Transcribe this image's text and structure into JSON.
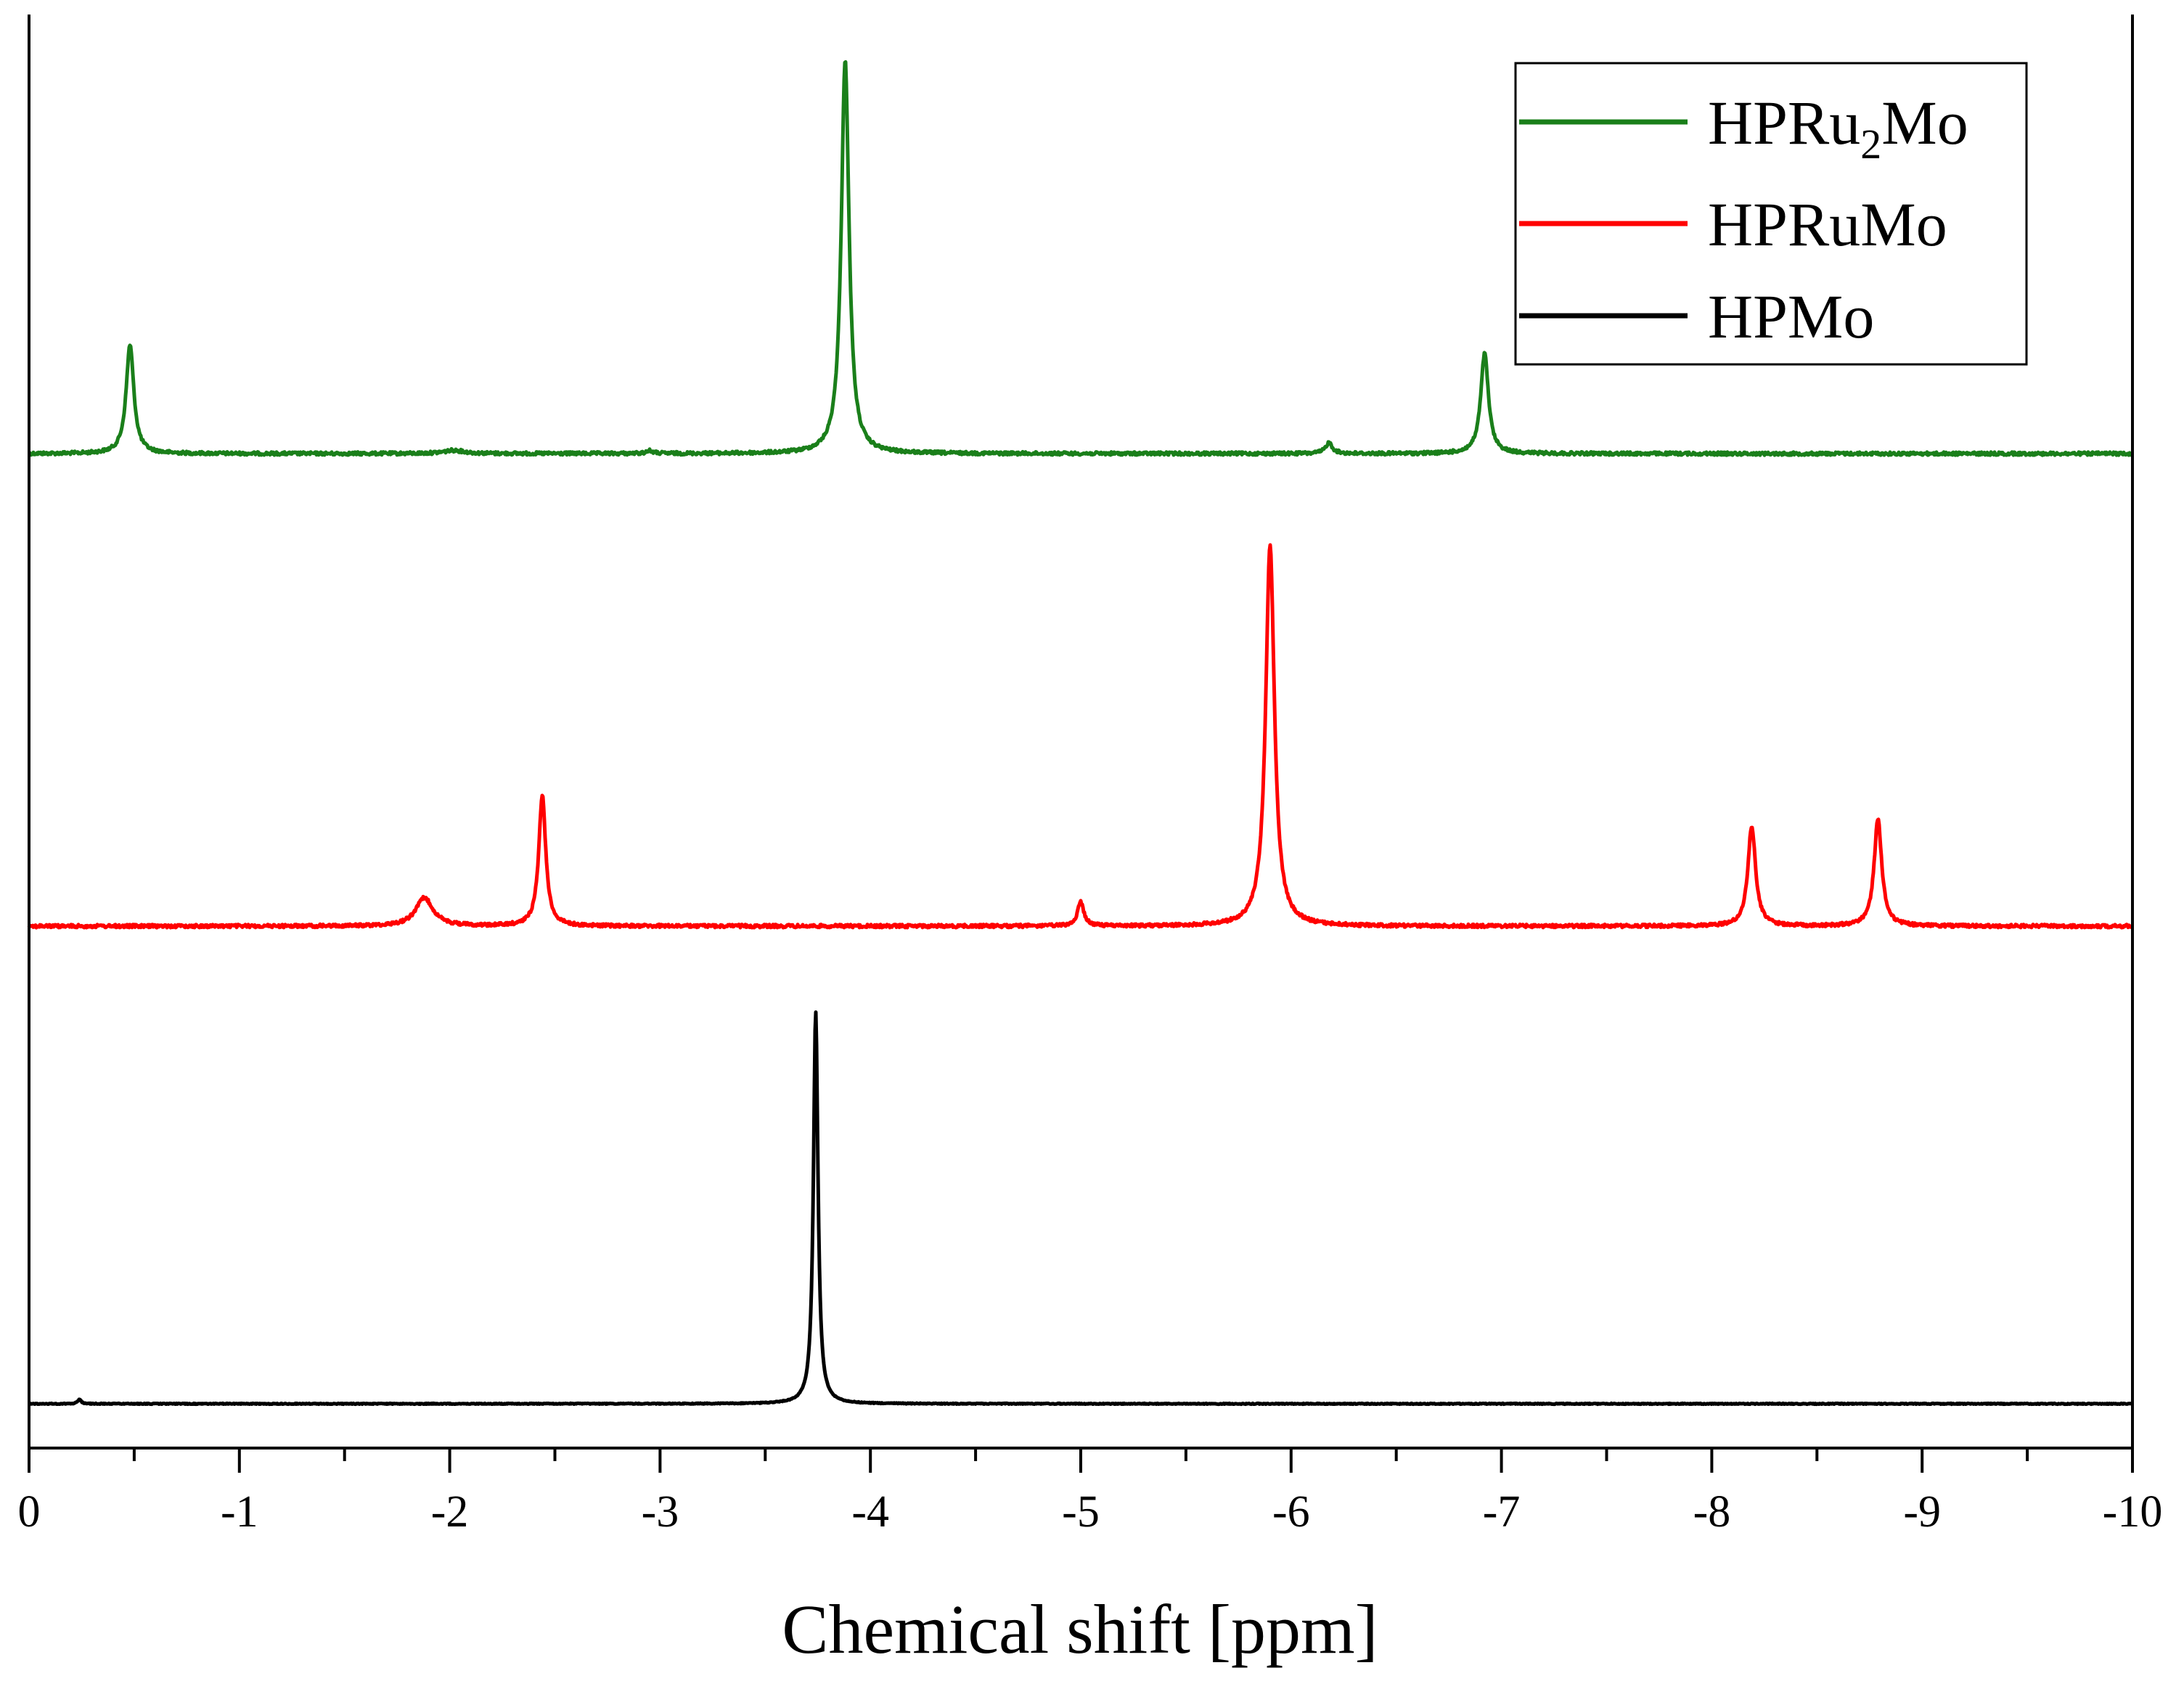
{
  "chart_data": {
    "type": "line",
    "xlabel": "Chemical shift [ppm]",
    "ylabel": "",
    "title": "",
    "xlim": [
      0,
      -10
    ],
    "x_ticks": [
      0,
      -1,
      -2,
      -3,
      -4,
      -5,
      -6,
      -7,
      -8,
      -9,
      -10
    ],
    "x_tick_labels": [
      "0",
      "-1",
      "-2",
      "-3",
      "-4",
      "-5",
      "-6",
      "-7",
      "-8",
      "-9",
      "-10"
    ],
    "x_minor_ticks": [
      -0.5,
      -1.5,
      -2.5,
      -3.5,
      -4.5,
      -5.5,
      -6.5,
      -7.5,
      -8.5,
      -9.5
    ],
    "y_axis_visible": false,
    "grid": false,
    "legend_position": "top-right",
    "stacked_offset": true,
    "legend": [
      {
        "series": "HPRu2Mo",
        "label_main": "HPRu",
        "label_sub": "2",
        "label_tail": "Mo",
        "color": "#1a7f1a"
      },
      {
        "series": "HPRuMo",
        "label_main": "HPRuMo",
        "label_sub": "",
        "label_tail": "",
        "color": "#ff0000"
      },
      {
        "series": "HPMo",
        "label_main": "HPMo",
        "label_sub": "",
        "label_tail": "",
        "color": "#000000"
      }
    ],
    "series": [
      {
        "name": "HPRu2Mo",
        "color": "#1a7f1a",
        "peaks": [
          {
            "x": -0.48,
            "height": 1.0,
            "width": 0.022
          },
          {
            "x": -2.02,
            "height": 0.03,
            "width": 0.06
          },
          {
            "x": -2.95,
            "height": 0.025,
            "width": 0.02
          },
          {
            "x": -3.88,
            "height": 3.62,
            "width": 0.022
          },
          {
            "x": -6.18,
            "height": 0.1,
            "width": 0.02
          },
          {
            "x": -6.92,
            "height": 0.92,
            "width": 0.022
          }
        ]
      },
      {
        "name": "HPRuMo",
        "color": "#ff0000",
        "peaks": [
          {
            "x": -1.88,
            "height": 0.26,
            "width": 0.05
          },
          {
            "x": -2.44,
            "height": 1.2,
            "width": 0.02
          },
          {
            "x": -5.0,
            "height": 0.22,
            "width": 0.018
          },
          {
            "x": -5.9,
            "height": 3.5,
            "width": 0.025
          },
          {
            "x": -8.19,
            "height": 0.92,
            "width": 0.022
          },
          {
            "x": -8.79,
            "height": 0.98,
            "width": 0.022
          }
        ]
      },
      {
        "name": "HPMo",
        "color": "#000000",
        "peaks": [
          {
            "x": -0.24,
            "height": 0.04,
            "width": 0.01
          },
          {
            "x": -3.74,
            "height": 3.6,
            "width": 0.013
          }
        ]
      }
    ]
  }
}
